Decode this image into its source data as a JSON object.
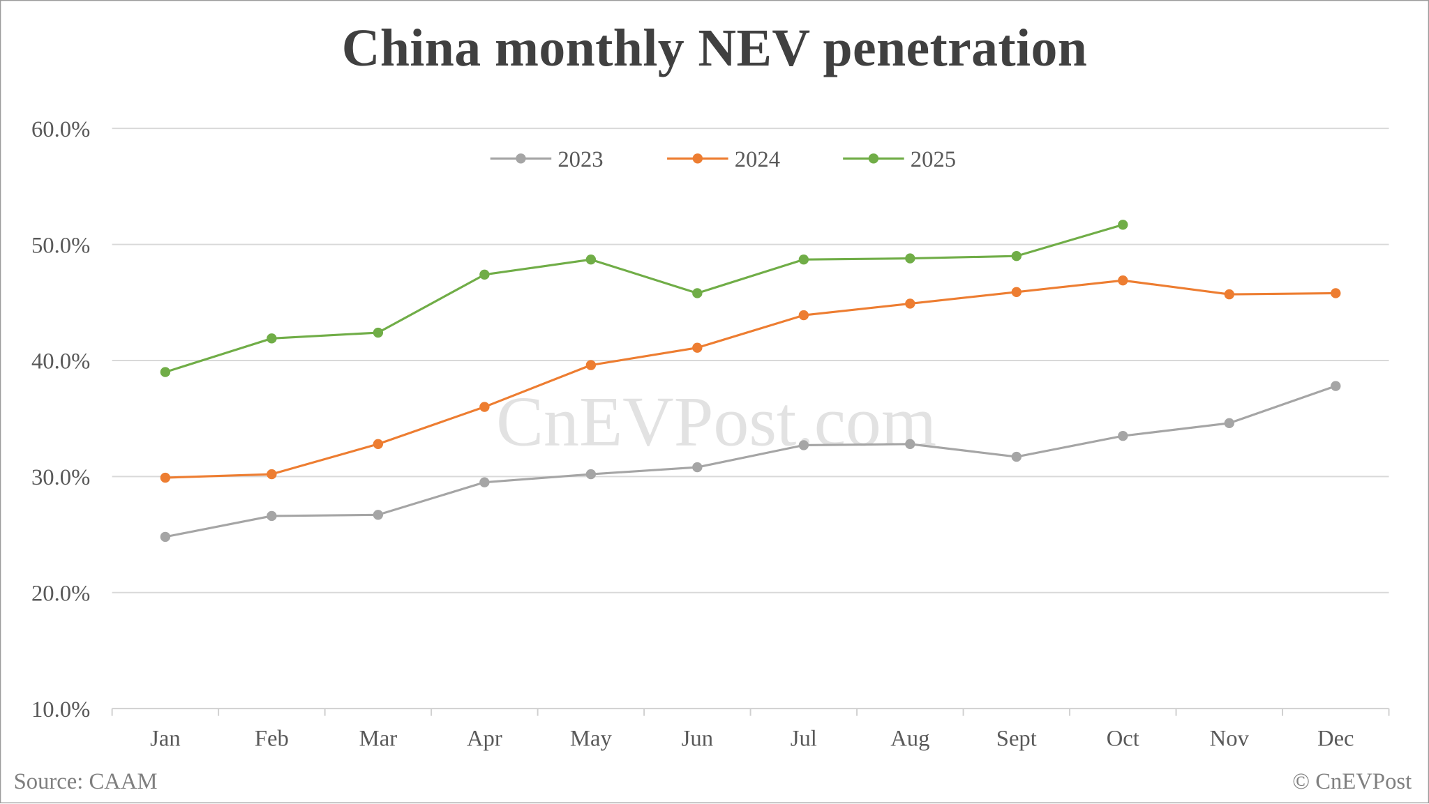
{
  "title": "China monthly NEV penetration",
  "footer": {
    "source": "Source: CAAM",
    "copyright": "© CnEVPost"
  },
  "watermark": "CnEVPost.com",
  "colors": {
    "2023": "#a5a5a5",
    "2024": "#ed7d31",
    "2025": "#70ad47",
    "grid": "#d9d9d9",
    "axis_text": "#595959",
    "title": "#404040"
  },
  "chart_data": {
    "type": "line",
    "title": "China monthly NEV penetration",
    "xlabel": "",
    "ylabel": "",
    "categories": [
      "Jan",
      "Feb",
      "Mar",
      "Apr",
      "May",
      "Jun",
      "Jul",
      "Aug",
      "Sept",
      "Oct",
      "Nov",
      "Dec"
    ],
    "y_ticks": [
      "10.0%",
      "20.0%",
      "30.0%",
      "40.0%",
      "50.0%",
      "60.0%"
    ],
    "ylim": [
      10,
      60
    ],
    "grid": true,
    "legend_position": "top",
    "series": [
      {
        "name": "2023",
        "color": "#a5a5a5",
        "values": [
          24.8,
          26.6,
          26.7,
          29.5,
          30.2,
          30.8,
          32.7,
          32.8,
          31.7,
          33.5,
          34.6,
          37.8
        ]
      },
      {
        "name": "2024",
        "color": "#ed7d31",
        "values": [
          29.9,
          30.2,
          32.8,
          36.0,
          39.6,
          41.1,
          43.9,
          44.9,
          45.9,
          46.9,
          45.7,
          45.8
        ]
      },
      {
        "name": "2025",
        "color": "#70ad47",
        "values": [
          39.0,
          41.9,
          42.4,
          47.4,
          48.7,
          45.8,
          48.7,
          48.8,
          49.0,
          51.7,
          null,
          null
        ]
      }
    ]
  }
}
